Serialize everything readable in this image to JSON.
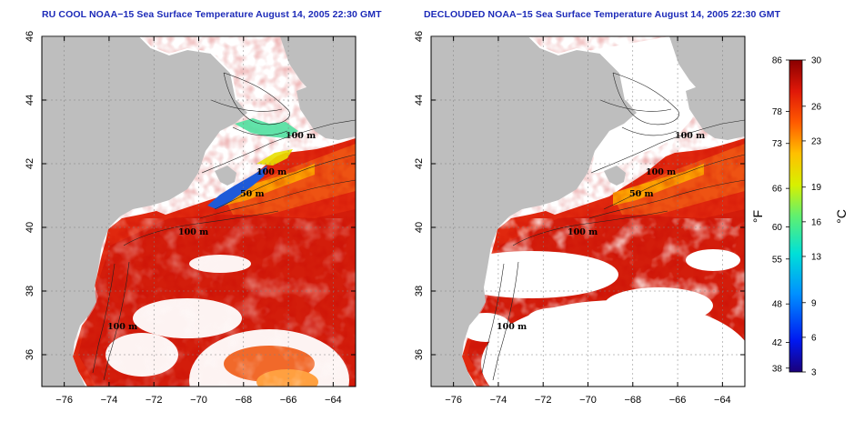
{
  "panels": [
    {
      "id": "left",
      "title": "RU COOL NOAA−15 Sea Surface Temperature August 14, 2005 22:30 GMT",
      "decloud": false,
      "contour_labels": [
        "100 m",
        "100 m",
        "50 m",
        "100 m",
        "100 m"
      ]
    },
    {
      "id": "right",
      "title": "DECLOUDED NOAA−15 Sea Surface Temperature August 14, 2005 22:30 GMT",
      "decloud": true,
      "contour_labels": [
        "100 m",
        "100 m",
        "50 m",
        "100 m",
        "100 m"
      ]
    }
  ],
  "map_axes": {
    "lon_ticks": [
      "−76",
      "−74",
      "−72",
      "−70",
      "−68",
      "−66",
      "−64"
    ],
    "lat_ticks": [
      "36",
      "38",
      "40",
      "42",
      "44",
      "46"
    ],
    "lon_range": [
      -77,
      -63
    ],
    "lat_range": [
      35,
      46
    ]
  },
  "colorbar": {
    "fahrenheit_ticks": [
      "86",
      "78",
      "73",
      "66",
      "60",
      "55",
      "48",
      "42",
      "38"
    ],
    "celsius_ticks": [
      "30",
      "26",
      "23",
      "19",
      "16",
      "13",
      "9",
      "6",
      "3"
    ],
    "fahrenheit_unit": "°F",
    "celsius_unit": "°C",
    "range_c": [
      3,
      30
    ]
  },
  "colors": {
    "title": "#1c2ab8",
    "land": "#bebebe",
    "cloud": "#ffffff",
    "warm_sst": "#d21a0a",
    "cool_sst": "#1e5ad8"
  }
}
